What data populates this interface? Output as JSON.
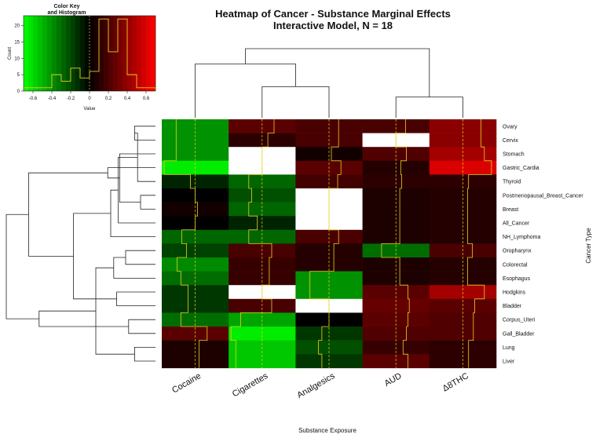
{
  "chart_data": {
    "type": "heatmap",
    "title": "Heatmap of Cancer - Substance Marginal Effects",
    "subtitle": "Interactive Model, N = 18",
    "xlabel": "Substance Exposure",
    "ylabel": "Cancer Type",
    "columns": [
      "Cocaine",
      "Cigarettes",
      "Analgesics",
      "AUD",
      "Δ8THC"
    ],
    "rows": [
      "Ovary",
      "Cervix",
      "Stomach",
      "Gastric_Cardia",
      "Thyroid",
      "Postmenopausal_Breast_Cancer",
      "Breast",
      "All_Cancer",
      "NH_Lymphoma",
      "Oropharynx",
      "Colorectal",
      "Esophagus",
      "Hodgkins",
      "Bladder",
      "Corpus_Uteri",
      "Gall_Bladder",
      "Lung",
      "Liver"
    ],
    "values": [
      [
        -0.4,
        0.25,
        0.2,
        0.2,
        0.38
      ],
      [
        -0.4,
        0.12,
        0.2,
        null,
        0.38
      ],
      [
        -0.4,
        null,
        0.05,
        0.22,
        0.45
      ],
      [
        -0.65,
        null,
        0.25,
        0.1,
        0.6
      ],
      [
        -0.1,
        -0.28,
        0.18,
        0.12,
        0.12
      ],
      [
        0.0,
        -0.22,
        null,
        0.08,
        0.1
      ],
      [
        0.05,
        -0.28,
        null,
        0.08,
        0.1
      ],
      [
        0.0,
        -0.1,
        null,
        0.08,
        0.1
      ],
      [
        -0.28,
        -0.28,
        0.2,
        0.08,
        0.1
      ],
      [
        -0.18,
        0.2,
        0.1,
        -0.3,
        0.2
      ],
      [
        -0.38,
        0.15,
        0.1,
        0.08,
        0.1
      ],
      [
        -0.3,
        0.15,
        -0.4,
        0.08,
        0.1
      ],
      [
        -0.15,
        null,
        -0.4,
        0.25,
        0.45
      ],
      [
        -0.15,
        0.2,
        null,
        0.28,
        0.25
      ],
      [
        -0.3,
        -0.45,
        0.0,
        0.25,
        0.22
      ],
      [
        0.25,
        -0.65,
        -0.15,
        0.22,
        0.22
      ],
      [
        0.08,
        -0.55,
        -0.22,
        0.15,
        0.12
      ],
      [
        0.08,
        -0.55,
        -0.15,
        0.25,
        0.12
      ]
    ],
    "missing_color": "#ffffff",
    "trace_color": "#e8d020",
    "color_scale": {
      "low": "#00ff00",
      "mid": "#000000",
      "high": "#ff0000",
      "range": [
        -0.7,
        0.7
      ]
    },
    "color_key": {
      "title": "Color Key",
      "subtitle": "and Histogram",
      "xlabel": "Value",
      "ylabel": "Count",
      "x_ticks": [
        -0.6,
        -0.4,
        -0.2,
        0,
        0.2,
        0.4,
        0.6
      ],
      "x_tick_labels": [
        "-0.6",
        "-0.4",
        "-0.2",
        "0",
        "0.2",
        "0.4",
        "0.6"
      ],
      "y_ticks": [
        0,
        5,
        10,
        15,
        20
      ],
      "y_range": [
        0,
        23
      ],
      "hist_bins": [
        -0.7,
        -0.6,
        -0.5,
        -0.4,
        -0.3,
        -0.2,
        -0.1,
        0.0,
        0.1,
        0.2,
        0.3,
        0.4,
        0.5,
        0.6,
        0.7
      ],
      "hist_counts": [
        1,
        1,
        1,
        5,
        3,
        7,
        4,
        6,
        22,
        12,
        22,
        5,
        1,
        1
      ]
    },
    "col_dendrogram": {
      "leaf_order": [
        0,
        1,
        2,
        3,
        4
      ],
      "merges": [
        [
          1,
          2,
          0.45
        ],
        [
          3,
          4,
          0.3
        ],
        [
          0,
          5,
          0.78
        ],
        [
          6,
          7,
          1.0
        ]
      ]
    },
    "row_dendrogram": {
      "leaf_order": [
        0,
        1,
        2,
        3,
        4,
        5,
        6,
        7,
        8,
        9,
        10,
        11,
        12,
        13,
        14,
        15,
        16,
        17
      ],
      "merges": [
        [
          0,
          1,
          0.14
        ],
        [
          5,
          6,
          0.1
        ],
        [
          4,
          18,
          0.12
        ],
        [
          16,
          17,
          0.14
        ],
        [
          14,
          15,
          0.18
        ],
        [
          9,
          10,
          0.2
        ],
        [
          2,
          19,
          0.24
        ],
        [
          7,
          20,
          0.25
        ],
        [
          12,
          13,
          0.26
        ],
        [
          11,
          23,
          0.28
        ],
        [
          8,
          25,
          0.3
        ],
        [
          3,
          24,
          0.32
        ],
        [
          21,
          27,
          0.4
        ],
        [
          26,
          28,
          0.55
        ],
        [
          22,
          30,
          0.78
        ],
        [
          29,
          31,
          0.85
        ],
        [
          32,
          33,
          1.0
        ]
      ]
    }
  }
}
